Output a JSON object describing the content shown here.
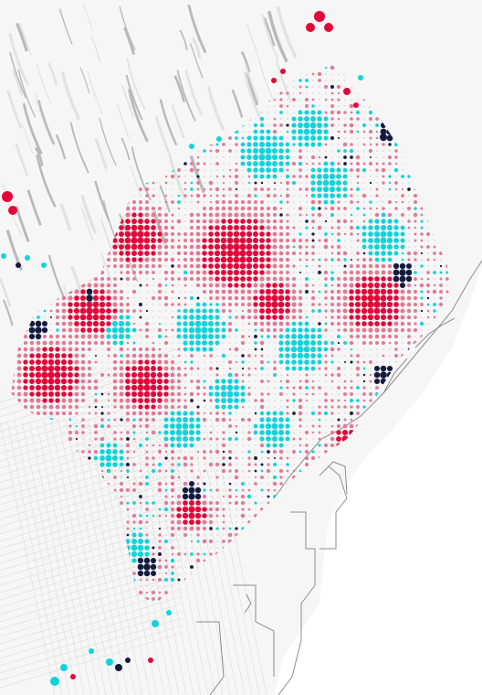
{
  "map": {
    "colors": {
      "background": "#f6f6f6",
      "sea": "#ffffff",
      "relief_dark": "#b9b9b9",
      "relief_light": "#e2e2e2",
      "street": "#d9d9d9",
      "coast_line": "#8c8c8c",
      "red": "#e3063a",
      "pink": "#e07a95",
      "cyan": "#12d3d8",
      "navy": "#121a3e",
      "white_dot": "#ffffff"
    },
    "legend_categories": [
      "red",
      "pink",
      "cyan",
      "navy"
    ],
    "icons": [
      "relief-hillshade",
      "street-grid",
      "port-docks",
      "dot-grid"
    ]
  }
}
